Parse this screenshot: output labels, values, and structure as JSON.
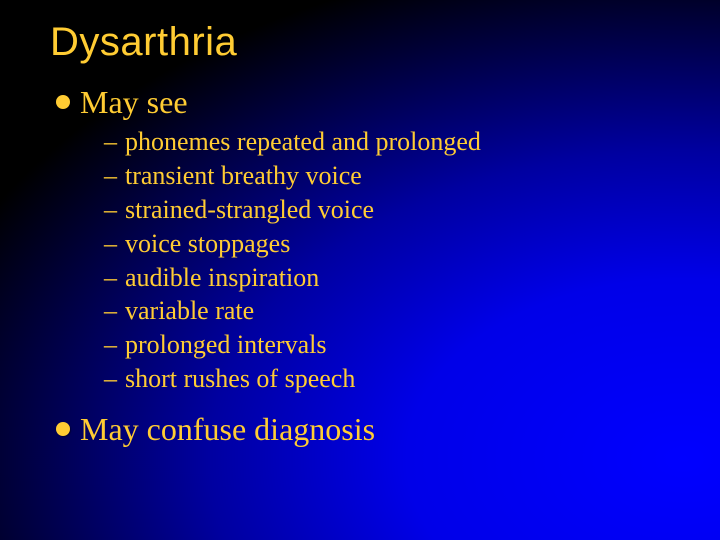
{
  "slide": {
    "title": "Dysarthria",
    "title_color": "#ffcc33",
    "title_font_family": "Arial",
    "title_fontsize": 40,
    "body_color": "#ffcc33",
    "body_font_family": "Times New Roman",
    "background_gradient": {
      "type": "radial",
      "center": "bottom-right",
      "stops": [
        "#0000ff",
        "#0000a0",
        "#000000"
      ]
    },
    "bullets": [
      {
        "text": "May see",
        "fontsize": 32,
        "marker": "disc",
        "sub": [
          "phonemes repeated and prolonged",
          "transient breathy voice",
          "strained-strangled voice",
          "voice stoppages",
          "audible inspiration",
          "variable rate",
          "prolonged intervals",
          "short rushes of speech"
        ],
        "sub_fontsize": 26,
        "sub_marker": "dash"
      },
      {
        "text": "May confuse diagnosis",
        "fontsize": 32,
        "marker": "disc",
        "sub": []
      }
    ]
  }
}
